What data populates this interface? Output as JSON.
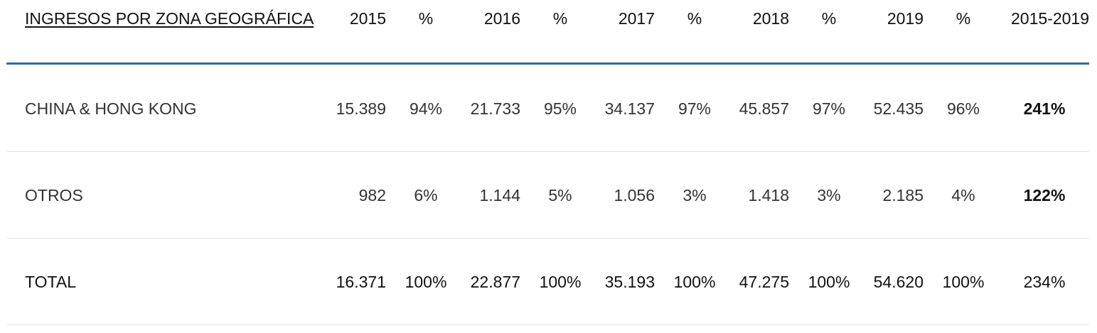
{
  "header": {
    "label": "INGRESOS POR ZONA GEOGRÁFICA",
    "y2015": "2015",
    "p2015": "%",
    "y2016": "2016",
    "p2016": "%",
    "y2017": "2017",
    "p2017": "%",
    "y2018": "2018",
    "p2018": "%",
    "y2019": "2019",
    "p2019": "%",
    "range": "2015-2019"
  },
  "rows": [
    {
      "label": "CHINA & HONG KONG",
      "v2015": "15.389",
      "p2015": "94%",
      "v2016": "21.733",
      "p2016": "95%",
      "v2017": "34.137",
      "p2017": "97%",
      "v2018": "45.857",
      "p2018": "97%",
      "v2019": "52.435",
      "p2019": "96%",
      "growth": "241%"
    },
    {
      "label": "OTROS",
      "v2015": "982",
      "p2015": "6%",
      "v2016": "1.144",
      "p2016": "5%",
      "v2017": "1.056",
      "p2017": "3%",
      "v2018": "1.418",
      "p2018": "3%",
      "v2019": "2.185",
      "p2019": "4%",
      "growth": "122%"
    }
  ],
  "total": {
    "label": "TOTAL",
    "v2015": "16.371",
    "p2015": "100%",
    "v2016": "22.877",
    "p2016": "100%",
    "v2017": "35.193",
    "p2017": "100%",
    "v2018": "47.275",
    "p2018": "100%",
    "v2019": "54.620",
    "p2019": "100%",
    "growth": "234%"
  },
  "colors": {
    "header_rule": "#2e6e9c",
    "row_divider": "#e3e3e3"
  }
}
